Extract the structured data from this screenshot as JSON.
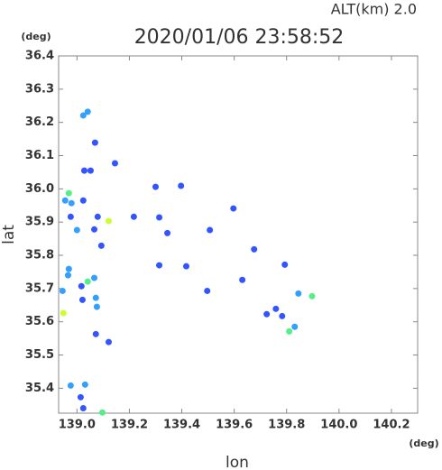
{
  "chart_data": {
    "type": "scatter",
    "title": "2020/01/06 23:58:52",
    "subtitle": "ALT(km)  2.0",
    "x_label": "lon",
    "y_label": "lat",
    "x_unit": "(deg)",
    "y_unit": "(deg)",
    "xlim": [
      138.93,
      140.3
    ],
    "ylim": [
      35.325,
      36.4
    ],
    "xticks": [
      {
        "value": 139.0,
        "label": "139.0"
      },
      139.2,
      139.4,
      139.6,
      139.8,
      {
        "value": 140.0,
        "label": "140.0"
      },
      140.2
    ],
    "yticks": [
      36.4,
      36.3,
      36.2,
      36.1,
      {
        "value": 36.0,
        "label": "36.0"
      },
      35.9,
      35.8,
      35.7,
      35.6,
      35.5,
      35.4
    ],
    "series": [
      {
        "color": "#3355ff",
        "x": [
          139.069,
          139.028,
          139.052,
          139.145,
          139.024,
          138.976,
          139.079,
          139.066,
          139.093,
          139.217,
          139.314,
          139.345,
          139.3,
          139.397,
          139.507,
          139.597,
          139.676,
          139.793,
          139.417,
          139.314,
          139.017,
          139.021,
          139.497,
          139.631,
          139.724,
          139.759,
          139.783,
          139.072,
          139.121,
          139.014,
          139.024
        ],
        "y": [
          36.139,
          36.055,
          36.055,
          36.077,
          35.965,
          35.916,
          35.916,
          35.878,
          35.829,
          35.916,
          35.914,
          35.867,
          36.006,
          36.009,
          35.876,
          35.941,
          35.818,
          35.772,
          35.767,
          35.77,
          35.707,
          35.666,
          35.693,
          35.726,
          35.623,
          35.639,
          35.617,
          35.563,
          35.539,
          35.373,
          35.34
        ]
      },
      {
        "color": "#33a0ff",
        "x": [
          139.041,
          139.024,
          138.955,
          138.979,
          139.0,
          138.969,
          138.966,
          139.066,
          138.945,
          139.072,
          139.076,
          139.845,
          139.831,
          139.031,
          138.976
        ],
        "y": [
          36.232,
          36.221,
          35.965,
          35.957,
          35.876,
          35.759,
          35.74,
          35.732,
          35.693,
          35.672,
          35.645,
          35.685,
          35.585,
          35.411,
          35.408
        ]
      },
      {
        "color": "#55ee88",
        "x": [
          138.969,
          139.041,
          139.897,
          139.81,
          139.097
        ],
        "y": [
          35.987,
          35.721,
          35.677,
          35.571,
          35.327
        ]
      },
      {
        "color": "#ccff33",
        "x": [
          139.121,
          138.948
        ],
        "y": [
          35.903,
          35.626
        ]
      }
    ]
  }
}
